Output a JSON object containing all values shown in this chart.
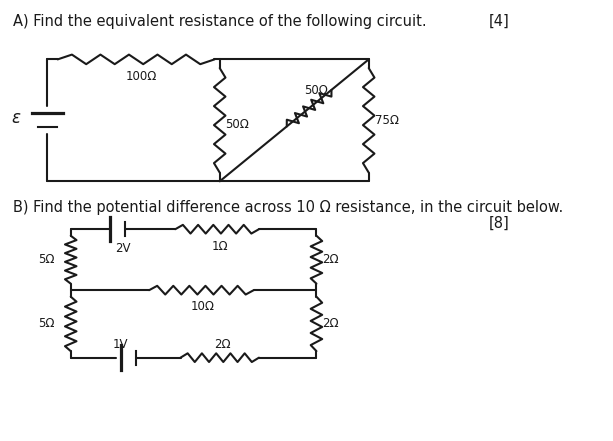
{
  "bg_color": "#ffffff",
  "fig_width": 6.13,
  "fig_height": 4.41,
  "dpi": 100,
  "title_A": "A) Find the equivalent resistance of the following circuit.",
  "mark_A": "[4]",
  "title_B": "B) Find the potential difference across 10 Ω resistance, in the circuit below.",
  "mark_B": "[8]",
  "text_color": "#1a1a1a",
  "line_color": "#1a1a1a",
  "font_size_title": 10.5
}
